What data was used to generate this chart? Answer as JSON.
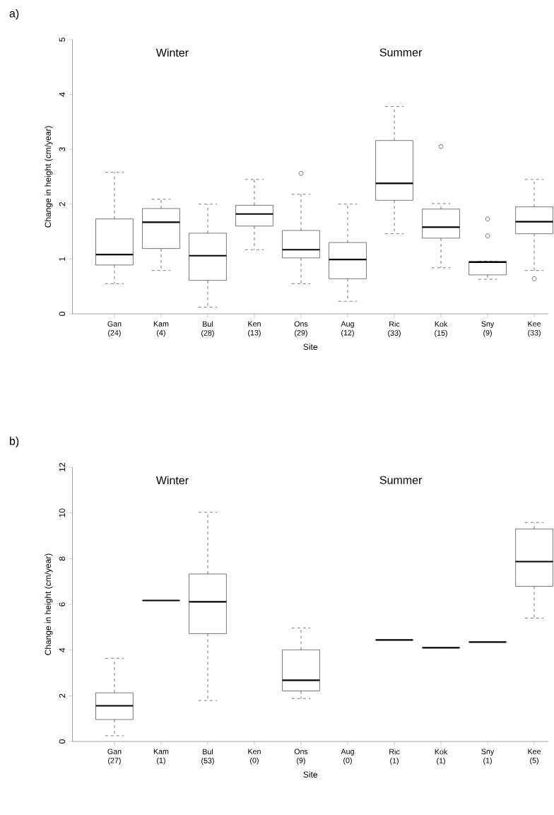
{
  "chart_data": [
    {
      "type": "box",
      "title": "a)",
      "xlabel": "Site",
      "ylabel": "Change in height (cm/year)",
      "categories": [
        "Gan (24)",
        "Kam (4)",
        "Bul (28)",
        "Ken (13)",
        "Ons (29)",
        "Aug (12)",
        "Ric (33)",
        "Kok (15)",
        "Sny (9)",
        "Kee (33)"
      ],
      "boxes": [
        {
          "low": 0.55,
          "q1": 0.89,
          "median": 1.08,
          "q3": 1.73,
          "high": 2.58
        },
        {
          "low": 0.79,
          "q1": 1.19,
          "median": 1.67,
          "q3": 1.92,
          "high": 2.09
        },
        {
          "low": 0.12,
          "q1": 0.61,
          "median": 1.06,
          "q3": 1.47,
          "high": 2.0
        },
        {
          "low": 1.17,
          "q1": 1.6,
          "median": 1.82,
          "q3": 1.98,
          "high": 2.45
        },
        {
          "low": 0.55,
          "q1": 1.02,
          "median": 1.17,
          "q3": 1.52,
          "high": 2.18,
          "outliers": [
            2.56
          ]
        },
        {
          "low": 0.23,
          "q1": 0.64,
          "median": 0.99,
          "q3": 1.3,
          "high": 2.0
        },
        {
          "low": 1.46,
          "q1": 2.07,
          "median": 2.38,
          "q3": 3.16,
          "high": 3.78
        },
        {
          "low": 0.84,
          "q1": 1.38,
          "median": 1.58,
          "q3": 1.91,
          "high": 2.01,
          "outliers": [
            3.05
          ]
        },
        {
          "low": 0.63,
          "q1": 0.71,
          "median": 0.94,
          "q3": 0.96,
          "high": 0.96,
          "outliers": [
            1.42,
            1.73
          ]
        },
        {
          "low": 0.79,
          "q1": 1.46,
          "median": 1.68,
          "q3": 1.95,
          "high": 2.45,
          "outliers": [
            0.64
          ]
        }
      ],
      "ylim": [
        0,
        5
      ],
      "yticks": [
        0,
        1,
        2,
        3,
        4,
        5
      ],
      "annotations": [
        "Winter",
        "Summer"
      ]
    },
    {
      "type": "box",
      "title": "b)",
      "xlabel": "Site",
      "ylabel": "Change in height (cm/year)",
      "categories": [
        "Gan (27)",
        "Kam (1)",
        "Bul (53)",
        "Ken (0)",
        "Ons (9)",
        "Aug (0)",
        "Ric (1)",
        "Kok (1)",
        "Sny (1)",
        "Kee (5)"
      ],
      "boxes": [
        {
          "low": 0.25,
          "q1": 0.96,
          "median": 1.56,
          "q3": 2.13,
          "high": 3.64
        },
        {
          "low": 6.17,
          "q1": 6.17,
          "median": 6.17,
          "q3": 6.17,
          "high": 6.17
        },
        {
          "low": 1.79,
          "q1": 4.72,
          "median": 6.11,
          "q3": 7.33,
          "high": 10.03
        },
        null,
        {
          "low": 1.88,
          "q1": 2.21,
          "median": 2.68,
          "q3": 4.01,
          "high": 4.97
        },
        null,
        {
          "low": 4.44,
          "q1": 4.44,
          "median": 4.44,
          "q3": 4.44,
          "high": 4.44
        },
        {
          "low": 4.1,
          "q1": 4.1,
          "median": 4.1,
          "q3": 4.1,
          "high": 4.1
        },
        {
          "low": 4.35,
          "q1": 4.35,
          "median": 4.35,
          "q3": 4.35,
          "high": 4.35
        },
        {
          "low": 5.4,
          "q1": 6.79,
          "median": 7.87,
          "q3": 9.3,
          "high": 9.58
        }
      ],
      "ylim": [
        0,
        12
      ],
      "yticks": [
        0,
        2,
        4,
        6,
        8,
        10,
        12
      ],
      "annotations": [
        "Winter",
        "Summer"
      ]
    }
  ]
}
